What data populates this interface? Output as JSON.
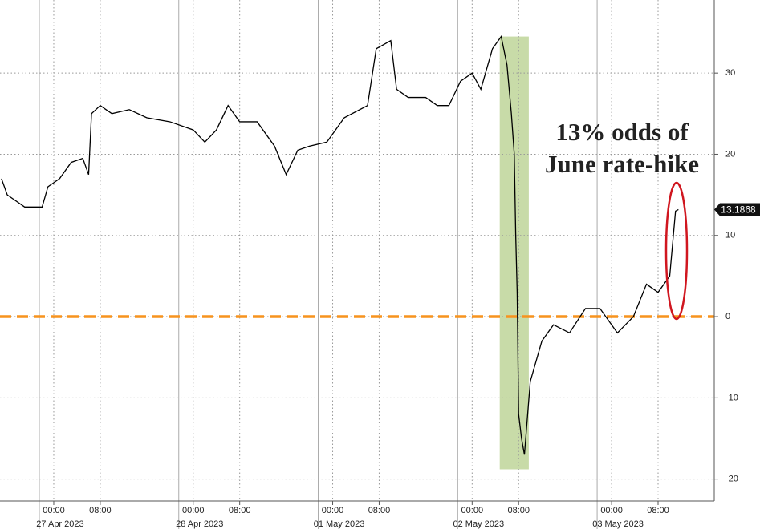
{
  "chart_data": {
    "type": "line",
    "series": [
      {
        "name": "June rate-hike odds",
        "color": "#000000",
        "x": [
          "2023-04-26T15:00",
          "2023-04-26T16:00",
          "2023-04-26T19:00",
          "2023-04-26T22:00",
          "2023-04-26T23:00",
          "2023-04-27T01:00",
          "2023-04-27T03:00",
          "2023-04-27T05:00",
          "2023-04-27T06:00",
          "2023-04-27T06:30",
          "2023-04-27T08:00",
          "2023-04-27T10:00",
          "2023-04-27T13:00",
          "2023-04-27T16:00",
          "2023-04-27T20:00",
          "2023-04-28T00:00",
          "2023-04-28T02:00",
          "2023-04-28T04:00",
          "2023-04-28T06:00",
          "2023-04-28T08:00",
          "2023-04-28T11:00",
          "2023-04-28T14:00",
          "2023-04-28T16:00",
          "2023-04-28T18:00",
          "2023-04-28T20:00",
          "2023-04-28T23:00",
          "2023-05-01T02:00",
          "2023-05-01T06:00",
          "2023-05-01T07:30",
          "2023-05-01T10:00",
          "2023-05-01T11:00",
          "2023-05-01T13:00",
          "2023-05-01T16:00",
          "2023-05-01T18:00",
          "2023-05-01T20:00",
          "2023-05-01T22:00",
          "2023-05-02T00:00",
          "2023-05-02T01:30",
          "2023-05-02T03:30",
          "2023-05-02T05:00",
          "2023-05-02T06:00",
          "2023-05-02T06:45",
          "2023-05-02T07:15",
          "2023-05-02T07:30",
          "2023-05-02T07:45",
          "2023-05-02T08:00",
          "2023-05-02T08:30",
          "2023-05-02T09:00",
          "2023-05-02T10:00",
          "2023-05-02T12:00",
          "2023-05-02T14:00",
          "2023-05-02T16:45",
          "2023-05-02T19:30",
          "2023-05-02T22:00",
          "2023-05-03T01:00",
          "2023-05-03T03:45",
          "2023-05-03T06:00",
          "2023-05-03T08:00",
          "2023-05-03T10:00",
          "2023-05-03T11:00",
          "2023-05-03T11:30"
        ],
        "values": [
          17,
          15,
          13.5,
          13.5,
          16,
          17,
          19,
          19.5,
          17.5,
          25,
          26,
          25,
          25.5,
          24.5,
          24,
          23,
          21.5,
          23,
          26,
          24,
          24,
          21,
          17.5,
          20.5,
          21,
          21.5,
          24.5,
          26,
          33,
          34,
          28,
          27,
          27,
          26,
          26,
          29,
          30,
          28,
          33,
          34.5,
          31,
          25,
          20,
          10,
          3,
          -12,
          -15,
          -17,
          -8,
          -3,
          -1,
          -2,
          1,
          1,
          -2,
          0,
          4,
          3,
          5,
          13,
          13.1868
        ]
      }
    ],
    "xlim": [
      "2023-04-26T14:45",
      "2023-05-03T17:40"
    ],
    "xticks": [
      {
        "value": "2023-04-27T00:00",
        "label": "00:00"
      },
      {
        "value": "2023-04-27T08:00",
        "label": "08:00"
      },
      {
        "value": "2023-04-28T00:00",
        "label": "00:00"
      },
      {
        "value": "2023-04-28T08:00",
        "label": "08:00"
      },
      {
        "value": "2023-05-01T00:00",
        "label": "00:00"
      },
      {
        "value": "2023-05-01T08:00",
        "label": "08:00"
      },
      {
        "value": "2023-05-02T00:00",
        "label": "00:00"
      },
      {
        "value": "2023-05-02T08:00",
        "label": "08:00"
      },
      {
        "value": "2023-05-03T00:00",
        "label": "00:00"
      },
      {
        "value": "2023-05-03T08:00",
        "label": "08:00"
      }
    ],
    "date_ticks": [
      {
        "value": "2023-04-27",
        "label": "27 Apr 2023"
      },
      {
        "value": "2023-04-28",
        "label": "28 Apr 2023"
      },
      {
        "value": "2023-05-01",
        "label": "01 May 2023"
      },
      {
        "value": "2023-05-02",
        "label": "02 May 2023"
      },
      {
        "value": "2023-05-03",
        "label": "03 May 2023"
      }
    ],
    "ylim": [
      -22.7,
      39
    ],
    "yticks": [
      -20,
      -10,
      0,
      10,
      20,
      30
    ],
    "grid": true,
    "hline": {
      "value": 0,
      "color": "#f7931e"
    },
    "shade": {
      "x": [
        "2023-05-02T04:45",
        "2023-05-02T09:45"
      ],
      "y": [
        34.5,
        -18.8
      ],
      "color": "#c8dba8"
    },
    "annotation": {
      "lines": [
        "13% odds of",
        "June rate-hike"
      ],
      "color": "#d0161f"
    }
  }
}
